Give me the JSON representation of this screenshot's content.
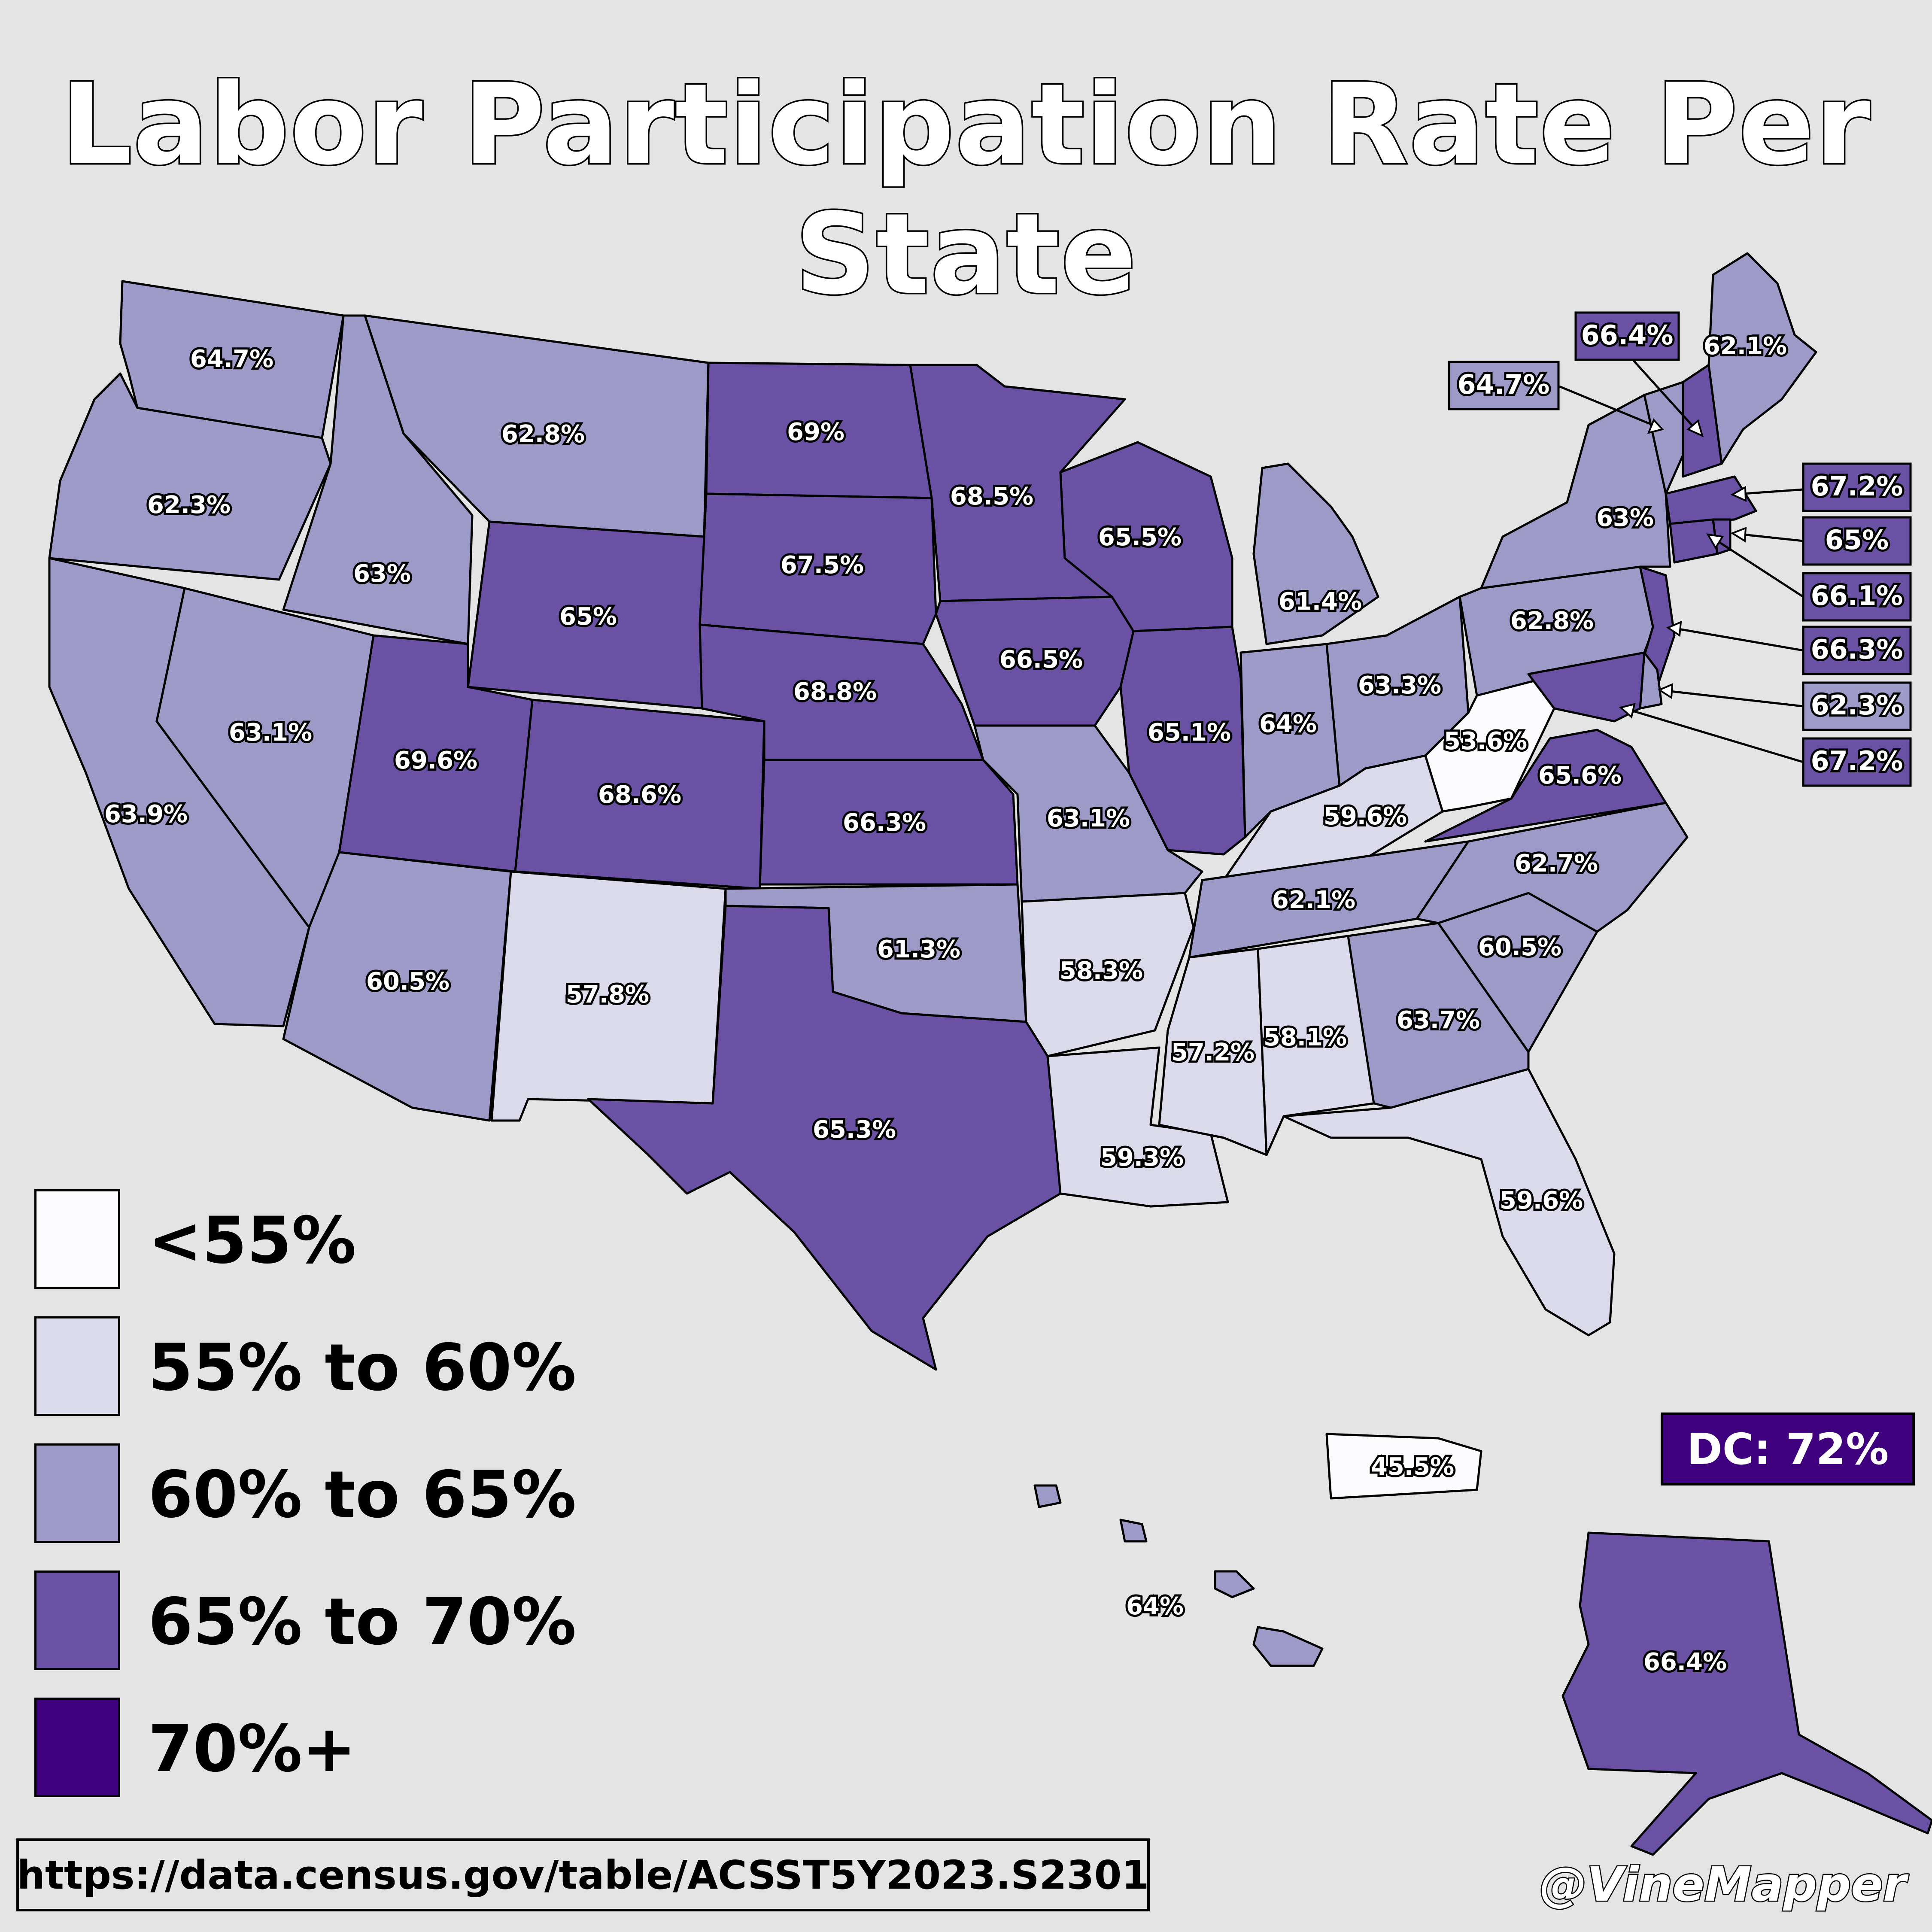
{
  "title": "Labor Participation Rate Per State",
  "colors": {
    "background": "#e4e4e4",
    "below_55": "#fcfbfd",
    "from_55_to_60": "#dadaeb",
    "from_60_to_65": "#9e9ac8",
    "from_65_to_70": "#6a51a3",
    "above_70": "#3f007d"
  },
  "legend": [
    {
      "label": "<55%",
      "color": "#fcfbfd"
    },
    {
      "label": "55% to 60%",
      "color": "#dadaeb"
    },
    {
      "label": "60% to 65%",
      "color": "#9e9ac8"
    },
    {
      "label": "65% to 70%",
      "color": "#6a51a3"
    },
    {
      "label": "70%+",
      "color": "#3f007d"
    }
  ],
  "states": {
    "WA": "64.7%",
    "OR": "62.3%",
    "CA": "63.9%",
    "NV": "63.1%",
    "ID": "63%",
    "MT": "62.8%",
    "WY": "65%",
    "UT": "69.6%",
    "CO": "68.6%",
    "AZ": "60.5%",
    "NM": "57.8%",
    "ND": "69%",
    "SD": "67.5%",
    "NE": "68.8%",
    "KS": "66.3%",
    "OK": "61.3%",
    "TX": "65.3%",
    "MN": "68.5%",
    "IA": "66.5%",
    "MO": "63.1%",
    "AR": "58.3%",
    "LA": "59.3%",
    "WI": "65.5%",
    "IL": "65.1%",
    "MI": "61.4%",
    "IN": "64%",
    "OH": "63.3%",
    "KY": "59.6%",
    "TN": "62.1%",
    "MS": "57.2%",
    "AL": "58.1%",
    "GA": "63.7%",
    "FL": "59.6%",
    "SC": "60.5%",
    "NC": "62.7%",
    "VA": "65.6%",
    "WV": "53.6%",
    "PA": "62.8%",
    "NY": "63%",
    "ME": "62.1%",
    "AK": "66.4%",
    "HI": "64%",
    "PR": "45.5%"
  },
  "callouts": {
    "NH": "66.4%",
    "VT": "64.7%",
    "MA": "67.2%",
    "RI": "65%",
    "CT": "66.1%",
    "NJ": "66.3%",
    "DE": "62.3%",
    "MD": "67.2%"
  },
  "dc": "DC: 72%",
  "source": "https://data.census.gov/table/ACSST5Y2023.S2301",
  "credit": "@VineMapper"
}
